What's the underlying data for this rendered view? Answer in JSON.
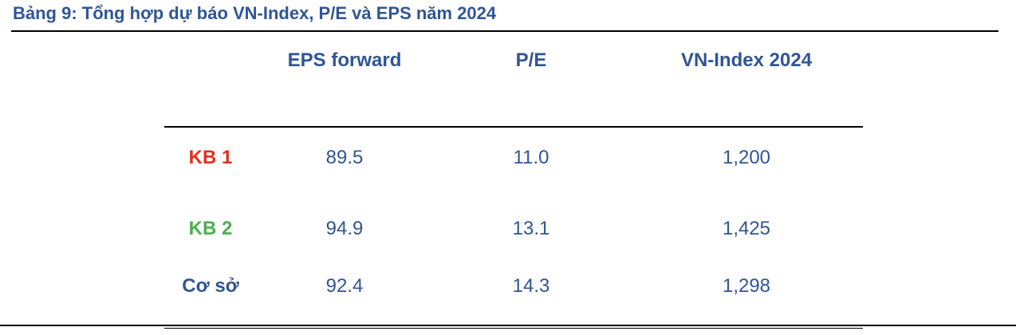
{
  "title": "Bảng 9: Tổng hợp dự báo VN-Index, P/E và EPS năm 2024",
  "table": {
    "headers": [
      "EPS forward",
      "P/E",
      "VN-Index 2024"
    ],
    "rows": [
      {
        "label": "KB 1",
        "label_color": "#e0301e",
        "eps": "89.5",
        "pe": "11.0",
        "vnindex": "1,200"
      },
      {
        "label": "KB 2",
        "label_color": "#4caf50",
        "eps": "94.9",
        "pe": "13.1",
        "vnindex": "1,425"
      },
      {
        "label": "Cơ sở",
        "label_color": "#2f5597",
        "eps": "92.4",
        "pe": "14.3",
        "vnindex": "1,298"
      }
    ]
  },
  "colors": {
    "text": "#2f5597",
    "rule": "#000000"
  }
}
